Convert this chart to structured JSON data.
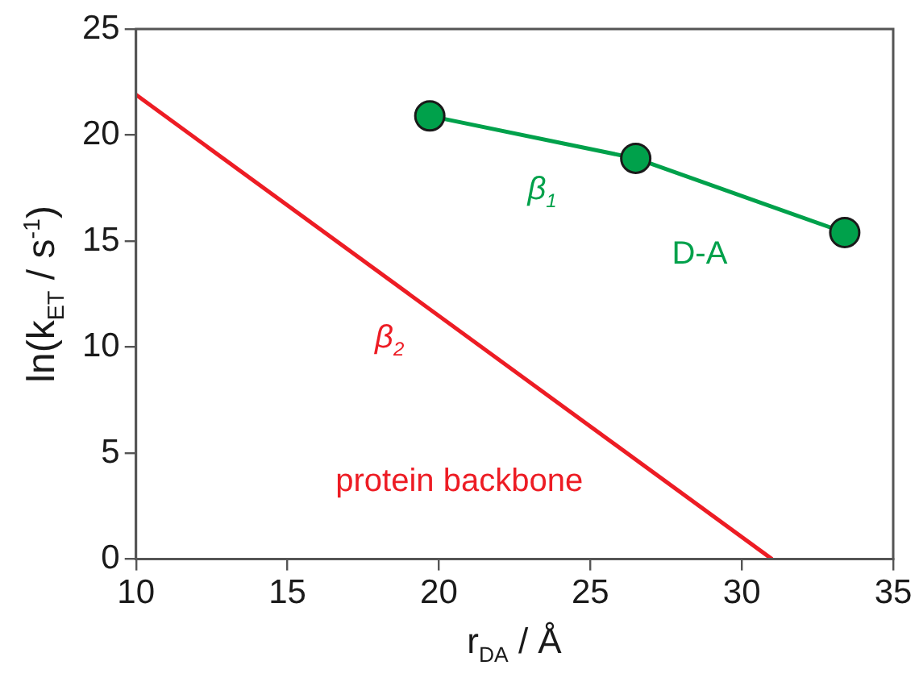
{
  "chart_data": {
    "type": "line",
    "xlabel": "r$_{DA}$ / Å",
    "ylabel": "ln(k$_{ET}$ / s$^{-1}$)",
    "xlim": [
      10,
      35
    ],
    "xticks": [
      10,
      15,
      20,
      25,
      30,
      35
    ],
    "ylim": [
      0,
      25
    ],
    "yticks": [
      0,
      5,
      10,
      15,
      20,
      25
    ],
    "grid": false,
    "legend": false,
    "series": [
      {
        "name": "D-A",
        "color": "#00a14b",
        "x": [
          19.7,
          26.5,
          33.4
        ],
        "values": [
          20.9,
          18.9,
          15.4
        ],
        "marker": "circle"
      },
      {
        "name": "protein backbone",
        "color": "#ed1c24",
        "x": [
          10,
          31.0
        ],
        "values": [
          21.9,
          0
        ],
        "marker": "none"
      }
    ],
    "annotations": [
      "β$_{1}$",
      "β$_{2}$"
    ]
  }
}
